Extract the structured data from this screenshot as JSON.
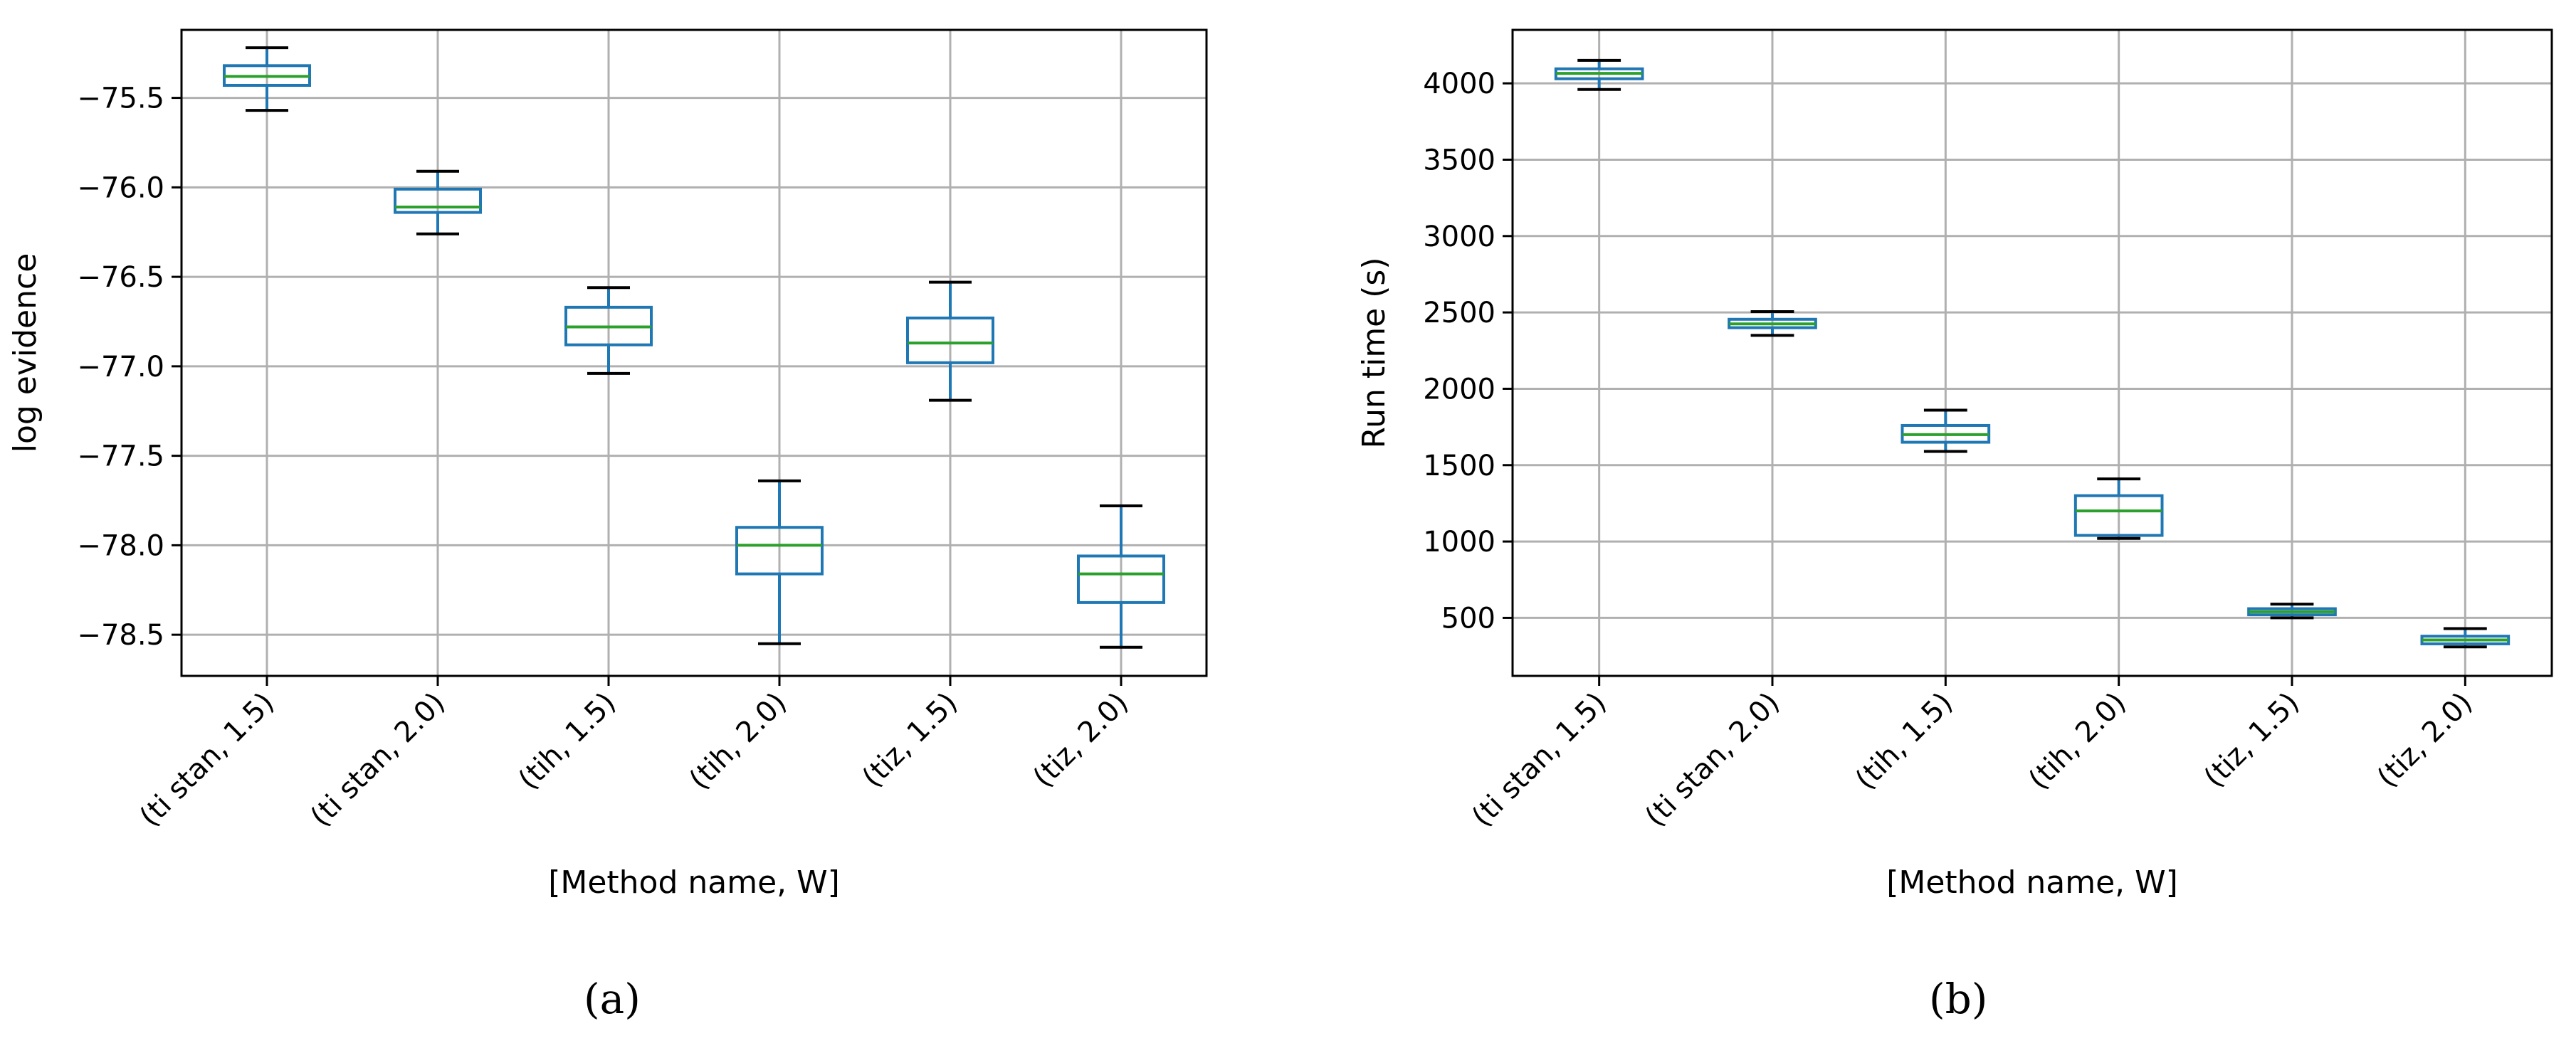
{
  "chart_data": [
    {
      "type": "box",
      "panel_label": "(a)",
      "xlabel": "[Method name, W]",
      "ylabel": "log evidence",
      "grid": true,
      "categories": [
        "(ti stan, 1.5)",
        "(ti stan, 2.0)",
        "(tih, 1.5)",
        "(tih, 2.0)",
        "(tiz, 1.5)",
        "(tiz, 2.0)"
      ],
      "yticks": [
        "−75.5",
        "−76.0",
        "−76.5",
        "−77.0",
        "−77.5",
        "−78.0",
        "−78.5"
      ],
      "ytick_values": [
        -75.5,
        -76.0,
        -76.5,
        -77.0,
        -77.5,
        -78.0,
        -78.5
      ],
      "ylim": [
        -78.73,
        -75.12
      ],
      "boxes": [
        {
          "whisker_low": -75.57,
          "q1": -75.43,
          "median": -75.38,
          "q3": -75.32,
          "whisker_high": -75.22
        },
        {
          "whisker_low": -76.26,
          "q1": -76.14,
          "median": -76.11,
          "q3": -76.01,
          "whisker_high": -75.91
        },
        {
          "whisker_low": -77.04,
          "q1": -76.88,
          "median": -76.78,
          "q3": -76.67,
          "whisker_high": -76.56
        },
        {
          "whisker_low": -78.55,
          "q1": -78.16,
          "median": -78.0,
          "q3": -77.9,
          "whisker_high": -77.64
        },
        {
          "whisker_low": -77.19,
          "q1": -76.98,
          "median": -76.87,
          "q3": -76.73,
          "whisker_high": -76.53
        },
        {
          "whisker_low": -78.57,
          "q1": -78.32,
          "median": -78.16,
          "q3": -78.06,
          "whisker_high": -77.78
        }
      ]
    },
    {
      "type": "box",
      "panel_label": "(b)",
      "xlabel": "[Method name, W]",
      "ylabel": "Run time (s)",
      "grid": true,
      "categories": [
        "(ti stan, 1.5)",
        "(ti stan, 2.0)",
        "(tih, 1.5)",
        "(tih, 2.0)",
        "(tiz, 1.5)",
        "(tiz, 2.0)"
      ],
      "yticks": [
        "4000",
        "3500",
        "3000",
        "2500",
        "2000",
        "1500",
        "1000",
        "500"
      ],
      "ytick_values": [
        4000,
        3500,
        3000,
        2500,
        2000,
        1500,
        1000,
        500
      ],
      "ylim": [
        120,
        4350
      ],
      "boxes": [
        {
          "whisker_low": 3960,
          "q1": 4030,
          "median": 4065,
          "q3": 4095,
          "whisker_high": 4150
        },
        {
          "whisker_low": 2350,
          "q1": 2400,
          "median": 2425,
          "q3": 2455,
          "whisker_high": 2505
        },
        {
          "whisker_low": 1590,
          "q1": 1650,
          "median": 1700,
          "q3": 1760,
          "whisker_high": 1860
        },
        {
          "whisker_low": 1020,
          "q1": 1040,
          "median": 1200,
          "q3": 1300,
          "whisker_high": 1410
        },
        {
          "whisker_low": 500,
          "q1": 520,
          "median": 540,
          "q3": 560,
          "whisker_high": 590
        },
        {
          "whisker_low": 310,
          "q1": 330,
          "median": 355,
          "q3": 380,
          "whisker_high": 430
        }
      ]
    }
  ],
  "colors": {
    "box": "#1f77b4",
    "median": "#2ca02c",
    "whisker_cap": "#000000",
    "grid": "#b0b0b0",
    "axes": "#000000"
  }
}
